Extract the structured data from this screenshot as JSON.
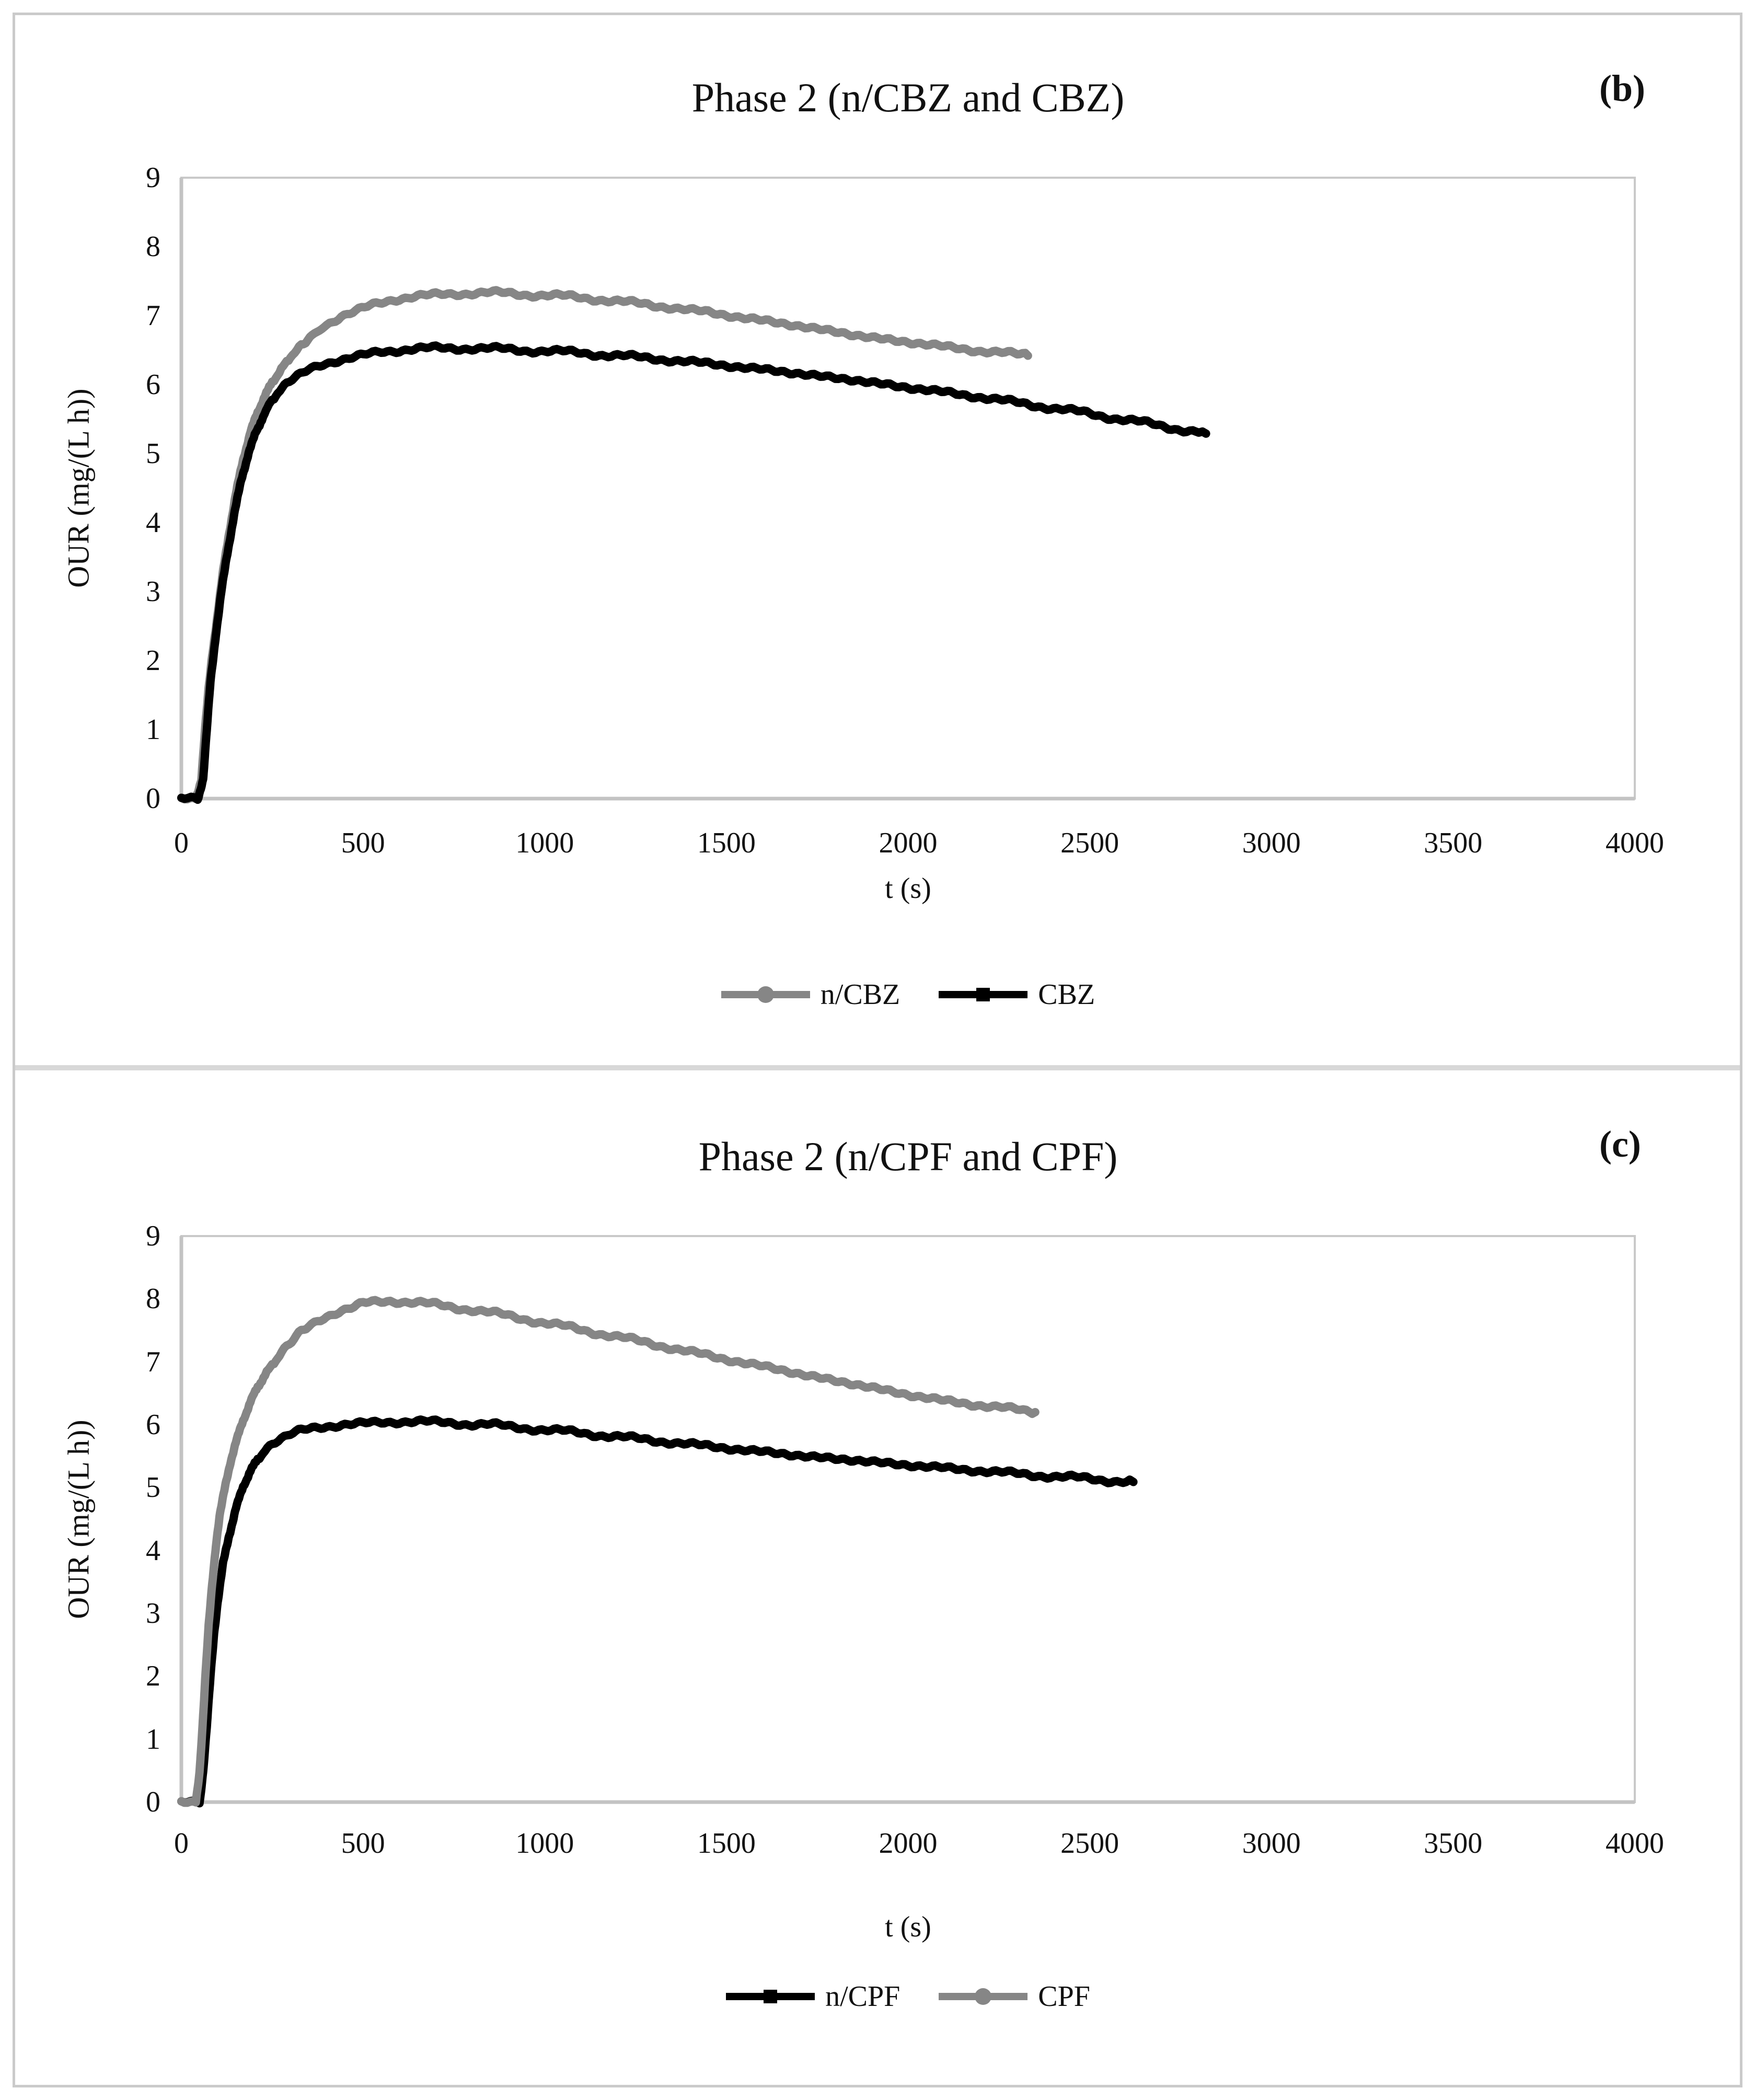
{
  "figure": {
    "panel_b_label": "(b)",
    "panel_c_label": "(c)"
  },
  "colors": {
    "series_gray": "#868686",
    "series_black": "#000000",
    "plot_border": "#c9c9c9",
    "axis_line": "#c3c3c3",
    "divider": "#d8d8d8",
    "text": "#111111"
  },
  "chart_data": [
    {
      "type": "line",
      "title": "Phase 2 (n/CBZ and CBZ)",
      "xlabel": "t (s)",
      "ylabel": "OUR (mg/(L h))",
      "xlim": [
        0,
        4000
      ],
      "ylim": [
        0,
        9
      ],
      "xticks": [
        0,
        500,
        1000,
        1500,
        2000,
        2500,
        3000,
        3500,
        4000
      ],
      "yticks": [
        0,
        1,
        2,
        3,
        4,
        5,
        6,
        7,
        8,
        9
      ],
      "grid": false,
      "legend_position": "bottom",
      "series": [
        {
          "name": "n/CBZ",
          "color": "#868686",
          "marker": "circle",
          "points": [
            [
              0,
              0
            ],
            [
              40,
              0
            ],
            [
              55,
              0.3
            ],
            [
              65,
              1.0
            ],
            [
              75,
              1.6
            ],
            [
              85,
              2.1
            ],
            [
              100,
              2.7
            ],
            [
              115,
              3.3
            ],
            [
              130,
              3.8
            ],
            [
              150,
              4.4
            ],
            [
              170,
              4.9
            ],
            [
              190,
              5.3
            ],
            [
              210,
              5.6
            ],
            [
              230,
              5.85
            ],
            [
              250,
              6.05
            ],
            [
              270,
              6.2
            ],
            [
              300,
              6.4
            ],
            [
              330,
              6.55
            ],
            [
              360,
              6.7
            ],
            [
              400,
              6.87
            ],
            [
              440,
              7.0
            ],
            [
              480,
              7.08
            ],
            [
              520,
              7.15
            ],
            [
              560,
              7.2
            ],
            [
              600,
              7.25
            ],
            [
              650,
              7.28
            ],
            [
              700,
              7.3
            ],
            [
              750,
              7.32
            ],
            [
              800,
              7.33
            ],
            [
              850,
              7.33
            ],
            [
              900,
              7.32
            ],
            [
              950,
              7.31
            ],
            [
              1000,
              7.3
            ],
            [
              1050,
              7.28
            ],
            [
              1100,
              7.26
            ],
            [
              1150,
              7.24
            ],
            [
              1200,
              7.21
            ],
            [
              1250,
              7.18
            ],
            [
              1300,
              7.15
            ],
            [
              1350,
              7.12
            ],
            [
              1400,
              7.08
            ],
            [
              1450,
              7.05
            ],
            [
              1500,
              7.01
            ],
            [
              1550,
              6.97
            ],
            [
              1600,
              6.93
            ],
            [
              1650,
              6.89
            ],
            [
              1700,
              6.85
            ],
            [
              1750,
              6.81
            ],
            [
              1800,
              6.77
            ],
            [
              1850,
              6.72
            ],
            [
              1900,
              6.68
            ],
            [
              1950,
              6.65
            ],
            [
              2000,
              6.62
            ],
            [
              2100,
              6.55
            ],
            [
              2200,
              6.49
            ],
            [
              2300,
              6.44
            ],
            [
              2330,
              6.42
            ]
          ]
        },
        {
          "name": "CBZ",
          "color": "#000000",
          "marker": "square",
          "points": [
            [
              0,
              0
            ],
            [
              45,
              0
            ],
            [
              60,
              0.3
            ],
            [
              70,
              1.0
            ],
            [
              80,
              1.7
            ],
            [
              95,
              2.4
            ],
            [
              110,
              3.0
            ],
            [
              125,
              3.5
            ],
            [
              145,
              4.1
            ],
            [
              165,
              4.6
            ],
            [
              185,
              5.0
            ],
            [
              205,
              5.3
            ],
            [
              225,
              5.55
            ],
            [
              245,
              5.75
            ],
            [
              265,
              5.9
            ],
            [
              290,
              6.02
            ],
            [
              320,
              6.13
            ],
            [
              350,
              6.22
            ],
            [
              390,
              6.3
            ],
            [
              430,
              6.36
            ],
            [
              470,
              6.41
            ],
            [
              510,
              6.45
            ],
            [
              550,
              6.48
            ],
            [
              600,
              6.5
            ],
            [
              650,
              6.52
            ],
            [
              700,
              6.53
            ],
            [
              750,
              6.53
            ],
            [
              800,
              6.53
            ],
            [
              850,
              6.52
            ],
            [
              900,
              6.51
            ],
            [
              950,
              6.5
            ],
            [
              1000,
              6.49
            ],
            [
              1100,
              6.46
            ],
            [
              1200,
              6.42
            ],
            [
              1300,
              6.38
            ],
            [
              1400,
              6.33
            ],
            [
              1500,
              6.28
            ],
            [
              1600,
              6.22
            ],
            [
              1700,
              6.16
            ],
            [
              1800,
              6.1
            ],
            [
              1900,
              6.03
            ],
            [
              2000,
              5.96
            ],
            [
              2100,
              5.89
            ],
            [
              2200,
              5.82
            ],
            [
              2300,
              5.74
            ],
            [
              2400,
              5.66
            ],
            [
              2500,
              5.58
            ],
            [
              2600,
              5.49
            ],
            [
              2700,
              5.4
            ],
            [
              2800,
              5.31
            ],
            [
              2820,
              5.29
            ]
          ]
        }
      ]
    },
    {
      "type": "line",
      "title": "Phase 2 (n/CPF and CPF)",
      "xlabel": "t (s)",
      "ylabel": "OUR (mg/(L h))",
      "xlim": [
        0,
        4000
      ],
      "ylim": [
        0,
        9
      ],
      "xticks": [
        0,
        500,
        1000,
        1500,
        2000,
        2500,
        3000,
        3500,
        4000
      ],
      "yticks": [
        0,
        1,
        2,
        3,
        4,
        5,
        6,
        7,
        8,
        9
      ],
      "grid": false,
      "legend_position": "bottom",
      "series": [
        {
          "name": "n/CPF",
          "color": "#000000",
          "marker": "square",
          "points": [
            [
              0,
              0
            ],
            [
              50,
              0
            ],
            [
              60,
              0.5
            ],
            [
              70,
              1.2
            ],
            [
              80,
              2.0
            ],
            [
              90,
              2.7
            ],
            [
              100,
              3.2
            ],
            [
              115,
              3.8
            ],
            [
              130,
              4.2
            ],
            [
              150,
              4.65
            ],
            [
              170,
              5.0
            ],
            [
              190,
              5.25
            ],
            [
              210,
              5.45
            ],
            [
              230,
              5.6
            ],
            [
              250,
              5.7
            ],
            [
              275,
              5.78
            ],
            [
              300,
              5.85
            ],
            [
              330,
              5.9
            ],
            [
              360,
              5.94
            ],
            [
              400,
              5.97
            ],
            [
              450,
              6.0
            ],
            [
              500,
              6.02
            ],
            [
              550,
              6.04
            ],
            [
              600,
              6.05
            ],
            [
              650,
              6.05
            ],
            [
              700,
              6.04
            ],
            [
              750,
              6.03
            ],
            [
              800,
              6.01
            ],
            [
              850,
              6.0
            ],
            [
              900,
              5.97
            ],
            [
              950,
              5.95
            ],
            [
              1000,
              5.92
            ],
            [
              1100,
              5.87
            ],
            [
              1200,
              5.81
            ],
            [
              1300,
              5.75
            ],
            [
              1400,
              5.69
            ],
            [
              1500,
              5.63
            ],
            [
              1600,
              5.57
            ],
            [
              1700,
              5.51
            ],
            [
              1800,
              5.46
            ],
            [
              1900,
              5.41
            ],
            [
              2000,
              5.36
            ],
            [
              2100,
              5.31
            ],
            [
              2200,
              5.27
            ],
            [
              2300,
              5.22
            ],
            [
              2400,
              5.18
            ],
            [
              2500,
              5.14
            ],
            [
              2600,
              5.1
            ],
            [
              2620,
              5.09
            ]
          ]
        },
        {
          "name": "CPF",
          "color": "#868686",
          "marker": "circle",
          "points": [
            [
              0,
              0
            ],
            [
              40,
              0
            ],
            [
              50,
              0.5
            ],
            [
              58,
              1.2
            ],
            [
              66,
              2.0
            ],
            [
              75,
              2.8
            ],
            [
              85,
              3.5
            ],
            [
              95,
              4.1
            ],
            [
              105,
              4.55
            ],
            [
              120,
              5.0
            ],
            [
              135,
              5.4
            ],
            [
              150,
              5.7
            ],
            [
              170,
              6.05
            ],
            [
              190,
              6.35
            ],
            [
              210,
              6.6
            ],
            [
              230,
              6.8
            ],
            [
              250,
              6.97
            ],
            [
              270,
              7.12
            ],
            [
              290,
              7.25
            ],
            [
              310,
              7.37
            ],
            [
              330,
              7.47
            ],
            [
              350,
              7.56
            ],
            [
              375,
              7.65
            ],
            [
              400,
              7.72
            ],
            [
              425,
              7.78
            ],
            [
              450,
              7.83
            ],
            [
              475,
              7.87
            ],
            [
              500,
              7.93
            ],
            [
              525,
              7.95
            ],
            [
              550,
              7.96
            ],
            [
              575,
              7.97
            ],
            [
              600,
              7.96
            ],
            [
              650,
              7.94
            ],
            [
              700,
              7.91
            ],
            [
              750,
              7.87
            ],
            [
              800,
              7.83
            ],
            [
              850,
              7.78
            ],
            [
              900,
              7.73
            ],
            [
              950,
              7.68
            ],
            [
              1000,
              7.62
            ],
            [
              1100,
              7.51
            ],
            [
              1200,
              7.4
            ],
            [
              1300,
              7.28
            ],
            [
              1400,
              7.16
            ],
            [
              1500,
              7.04
            ],
            [
              1600,
              6.93
            ],
            [
              1700,
              6.81
            ],
            [
              1800,
              6.7
            ],
            [
              1900,
              6.59
            ],
            [
              2000,
              6.48
            ],
            [
              2100,
              6.38
            ],
            [
              2200,
              6.31
            ],
            [
              2300,
              6.24
            ],
            [
              2350,
              6.2
            ]
          ]
        }
      ]
    }
  ]
}
